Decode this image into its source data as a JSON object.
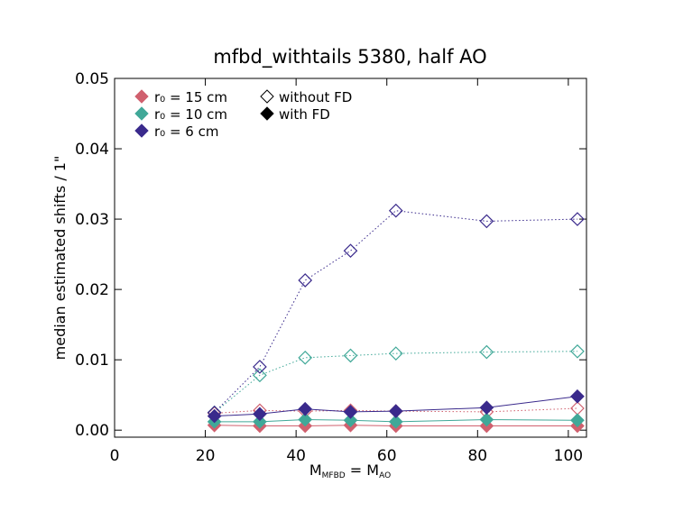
{
  "chart_data": {
    "type": "line",
    "title": "mfbd_withtails 5380, half AO",
    "xlabel": [
      "M",
      "MFBD",
      " = M",
      "AO"
    ],
    "ylabel": "median estimated shifts / 1\"",
    "x": [
      22,
      32,
      42,
      52,
      62,
      82,
      102
    ],
    "xlim": [
      0,
      104
    ],
    "xticks": [
      0,
      20,
      40,
      60,
      80,
      100
    ],
    "ylim": [
      -0.001,
      0.05
    ],
    "yticks": [
      {
        "value": 0,
        "label": "0.00"
      },
      {
        "value": 0.01,
        "label": "0.01"
      },
      {
        "value": 0.02,
        "label": "0.02"
      },
      {
        "value": 0.03,
        "label": "0.03"
      },
      {
        "value": 0.04,
        "label": "0.04"
      },
      {
        "value": 0.05,
        "label": "0.05"
      }
    ],
    "legend_styles": [
      "without FD",
      "with FD"
    ],
    "groups": [
      {
        "name": "r₀ = 15 cm",
        "color": "#d0606e",
        "without_fd": [
          0.0024,
          0.0028,
          0.0027,
          0.0028,
          0.0027,
          0.0026,
          0.0031
        ],
        "with_fd": [
          0.0007,
          0.0006,
          0.0006,
          0.0007,
          0.0006,
          0.0006,
          0.0006
        ]
      },
      {
        "name": "r₀ = 10 cm",
        "color": "#40a898",
        "without_fd": [
          0.0025,
          0.0078,
          0.0103,
          0.0106,
          0.0109,
          0.0111,
          0.0112
        ],
        "with_fd": [
          0.0012,
          0.0012,
          0.0015,
          0.0014,
          0.0012,
          0.0015,
          0.0014
        ]
      },
      {
        "name": "r₀ = 6 cm",
        "color": "#3a2a8c",
        "without_fd": [
          0.0025,
          0.009,
          0.0213,
          0.0255,
          0.0312,
          0.0297,
          0.03
        ],
        "with_fd": [
          0.002,
          0.0023,
          0.003,
          0.0026,
          0.0027,
          0.0032,
          0.0048
        ]
      }
    ]
  }
}
